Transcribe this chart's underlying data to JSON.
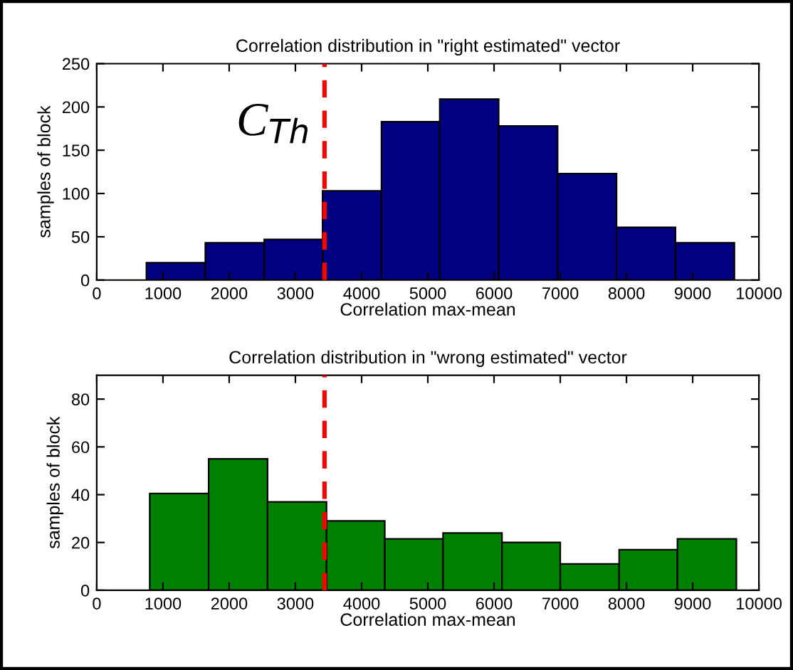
{
  "chart_data": [
    {
      "type": "histogram",
      "title": "Correlation distribution in \"right estimated\" vector",
      "xlabel": "Correlation max-mean",
      "ylabel": "samples of block",
      "bins": [
        750,
        1640,
        2530,
        3410,
        4300,
        5180,
        6070,
        6960,
        7850,
        8740,
        9630
      ],
      "values": [
        20,
        43,
        47,
        103,
        183,
        209,
        178,
        123,
        61,
        43
      ],
      "color": "#000080",
      "xlim": [
        0,
        10000
      ],
      "xticks": [
        0,
        1000,
        2000,
        3000,
        4000,
        5000,
        6000,
        7000,
        8000,
        9000,
        10000
      ],
      "ylim": [
        0,
        250
      ],
      "yticks": [
        0,
        50,
        100,
        150,
        200,
        250
      ],
      "grid": false,
      "ref_lines": [
        {
          "axis": "x",
          "value": 3440,
          "label": "C$_{Th}$",
          "color": "#ff0000",
          "line_style": "dashed"
        }
      ]
    },
    {
      "type": "histogram",
      "title": "Correlation distribution in \"wrong estimated\" vector",
      "xlabel": "Correlation max-mean",
      "ylabel": "samples of block",
      "bins": [
        800,
        1690,
        2580,
        3470,
        4350,
        5230,
        6120,
        7000,
        7890,
        8770,
        9660
      ],
      "values": [
        40.5,
        55,
        37,
        29,
        21.5,
        24,
        20,
        11,
        17,
        21.5
      ],
      "color": "#008000",
      "xlim": [
        0,
        10000
      ],
      "xticks": [
        0,
        1000,
        2000,
        3000,
        4000,
        5000,
        6000,
        7000,
        8000,
        9000,
        10000
      ],
      "ylim": [
        0,
        90
      ],
      "yticks": [
        0,
        20,
        40,
        60,
        80
      ],
      "grid": false,
      "ref_lines": [
        {
          "axis": "x",
          "value": 3440,
          "color": "#ff0000",
          "line_style": "dashed"
        }
      ]
    }
  ]
}
